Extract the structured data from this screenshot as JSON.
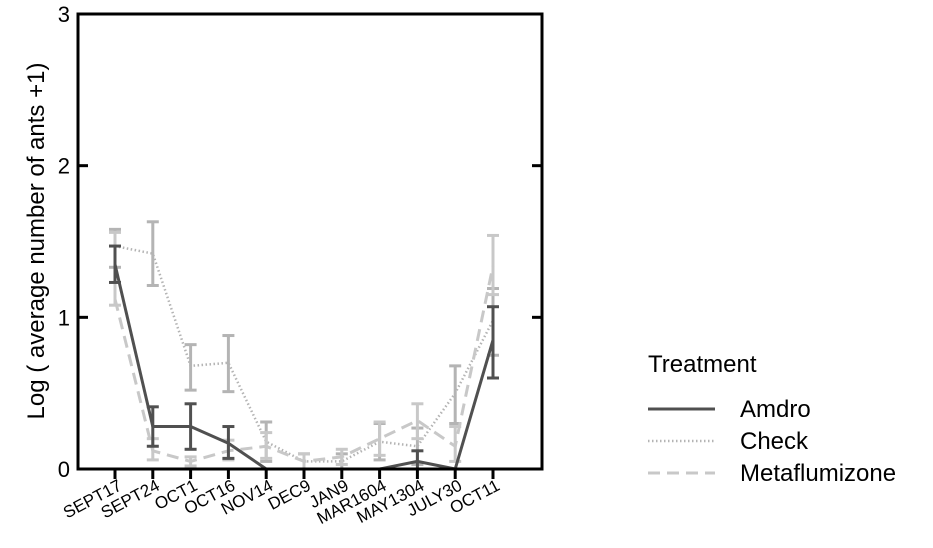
{
  "chart_data": {
    "type": "line",
    "categories": [
      "SEPT17",
      "SEPT24",
      "OCT1",
      "OCT16",
      "NOV14",
      "DEC9",
      "JAN9",
      "MAR1604",
      "MAY1304",
      "JULY30",
      "OCT11"
    ],
    "ylabel": "Log ( average number of ants +1)",
    "ylim": [
      0,
      3
    ],
    "yticks": [
      "0",
      "1",
      "2",
      "3"
    ],
    "legend": {
      "title": "Treatment",
      "placement": "right"
    },
    "series": [
      {
        "name": "Amdro",
        "color": "#505050",
        "style": "solid",
        "values": [
          1.35,
          0.28,
          0.28,
          0.17,
          0.0,
          0.0,
          0.0,
          0.0,
          0.05,
          0.0,
          0.85
        ],
        "err_low": [
          1.23,
          0.15,
          0.13,
          0.07,
          0.0,
          0.0,
          0.0,
          0.0,
          0.0,
          0.0,
          0.6
        ],
        "err_high": [
          1.47,
          0.41,
          0.43,
          0.28,
          0.0,
          0.0,
          0.0,
          0.0,
          0.12,
          0.0,
          1.07
        ]
      },
      {
        "name": "Check",
        "color": "#b4b4b4",
        "style": "dotted",
        "values": [
          1.47,
          1.42,
          0.68,
          0.7,
          0.18,
          0.05,
          0.05,
          0.18,
          0.15,
          0.5,
          0.98
        ],
        "err_low": [
          1.33,
          1.21,
          0.52,
          0.51,
          0.05,
          0.0,
          0.0,
          0.06,
          0.03,
          0.3,
          0.75
        ],
        "err_high": [
          1.58,
          1.63,
          0.82,
          0.88,
          0.31,
          0.1,
          0.1,
          0.3,
          0.27,
          0.68,
          1.19
        ]
      },
      {
        "name": "Metaflumizone",
        "color": "#c8c8c8",
        "style": "dashed",
        "values": [
          1.12,
          0.12,
          0.05,
          0.12,
          0.15,
          0.05,
          0.08,
          0.2,
          0.32,
          0.15,
          1.34
        ],
        "err_low": [
          1.08,
          0.06,
          0.02,
          0.06,
          0.07,
          0.0,
          0.03,
          0.09,
          0.2,
          0.05,
          1.15
        ],
        "err_high": [
          1.56,
          0.2,
          0.08,
          0.19,
          0.24,
          0.1,
          0.13,
          0.31,
          0.43,
          0.28,
          1.54
        ]
      }
    ]
  }
}
